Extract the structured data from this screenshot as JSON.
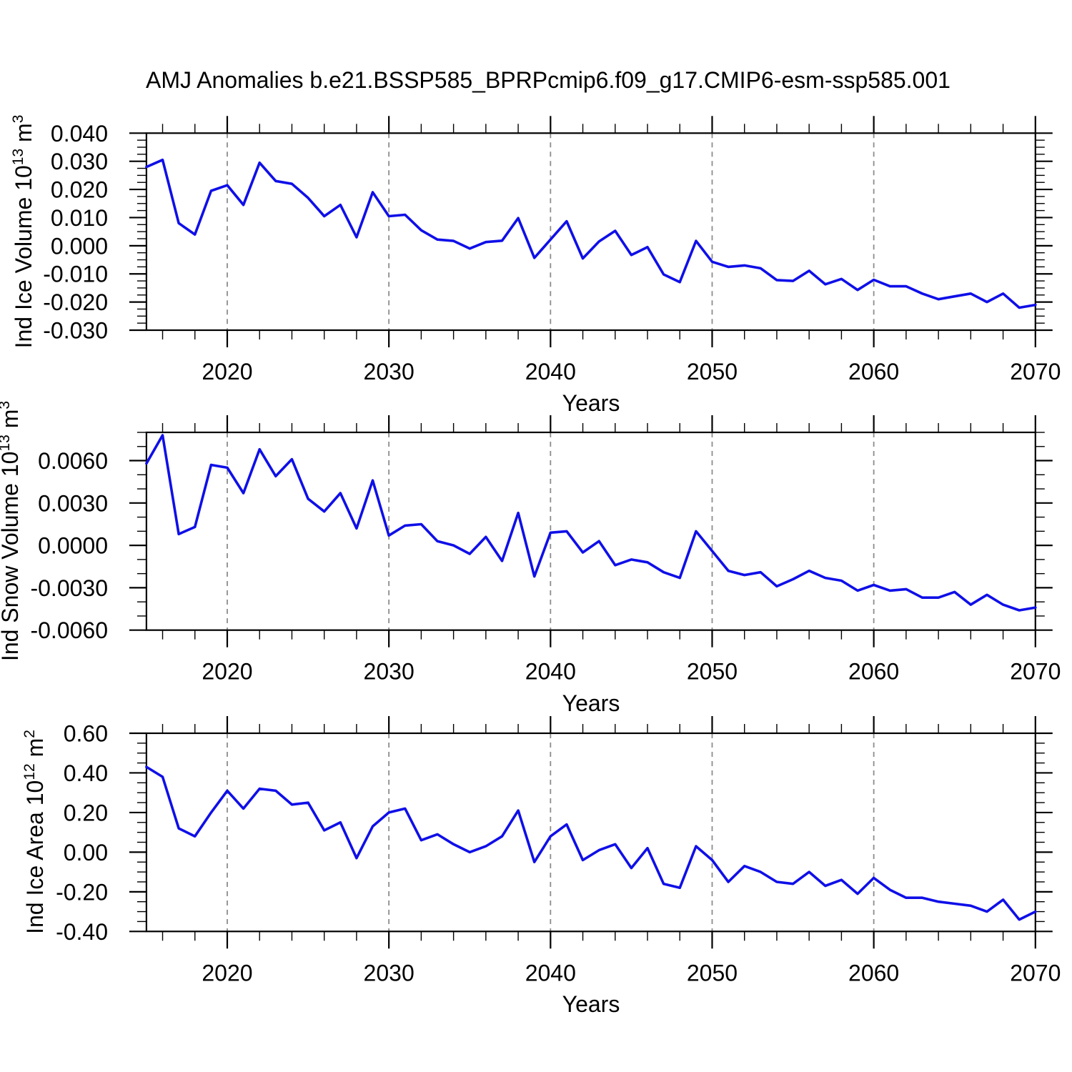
{
  "title": "AMJ Anomalies b.e21.BSSP585_BPRPcmip6.f09_g17.CMIP6-esm-ssp585.001",
  "colors": {
    "line": "#0f0fe8",
    "frame": "#000000",
    "grid": "#8c8c8c",
    "background": "#ffffff"
  },
  "chart_data": [
    {
      "type": "line",
      "id": "ice-volume",
      "ylabel": "Ind Ice Volume 10^13 m^3",
      "ylabel_parts": {
        "pre": "Ind Ice Volume 10",
        "exp": "13",
        "mid": " m",
        "unit_exp": "3"
      },
      "xlabel": "Years",
      "xlim": [
        2015,
        2070
      ],
      "ylim": [
        -0.03,
        0.04
      ],
      "xticks": [
        2020,
        2030,
        2040,
        2050,
        2060,
        2070
      ],
      "xtick_labels": [
        "2020",
        "2030",
        "2040",
        "2050",
        "2060",
        "2070"
      ],
      "x_minor_step": 2,
      "grid_x": [
        2020,
        2030,
        2040,
        2050,
        2060
      ],
      "yticks": [
        0.04,
        0.03,
        0.02,
        0.01,
        0.0,
        -0.01,
        -0.02,
        -0.03
      ],
      "ytick_labels": [
        "0.040",
        "0.030",
        "0.020",
        "0.010",
        "0.000",
        "-0.010",
        "-0.020",
        "-0.030"
      ],
      "y_minor_step": 0.0025,
      "x": [
        2015,
        2016,
        2017,
        2018,
        2019,
        2020,
        2021,
        2022,
        2023,
        2024,
        2025,
        2026,
        2027,
        2028,
        2029,
        2030,
        2031,
        2032,
        2033,
        2034,
        2035,
        2036,
        2037,
        2038,
        2039,
        2040,
        2041,
        2042,
        2043,
        2044,
        2045,
        2046,
        2047,
        2048,
        2049,
        2050,
        2051,
        2052,
        2053,
        2054,
        2055,
        2056,
        2057,
        2058,
        2059,
        2060,
        2061,
        2062,
        2063,
        2064,
        2065,
        2066,
        2067,
        2068,
        2069,
        2070
      ],
      "values": [
        0.028,
        0.0305,
        0.008,
        0.004,
        0.0195,
        0.0215,
        0.0145,
        0.0295,
        0.023,
        0.022,
        0.017,
        0.0105,
        0.0145,
        0.003,
        0.019,
        0.0105,
        0.011,
        0.0055,
        0.0022,
        0.0017,
        -0.001,
        0.0013,
        0.0018,
        0.0098,
        -0.0043,
        0.0022,
        0.0087,
        -0.0045,
        0.0015,
        0.0053,
        -0.0033,
        -0.0005,
        -0.0102,
        -0.0129,
        0.0017,
        -0.0057,
        -0.0075,
        -0.007,
        -0.008,
        -0.0122,
        -0.0125,
        -0.0089,
        -0.0137,
        -0.0118,
        -0.0157,
        -0.0121,
        -0.0144,
        -0.0144,
        -0.017,
        -0.019,
        -0.018,
        -0.017,
        -0.02,
        -0.017,
        -0.022,
        -0.021
      ]
    },
    {
      "type": "line",
      "id": "snow-volume",
      "ylabel": "Ind Snow Volume 10^13 m^3",
      "ylabel_parts": {
        "pre": "Ind Snow Volume 10",
        "exp": "13",
        "mid": " m",
        "unit_exp": "3"
      },
      "xlabel": "Years",
      "xlim": [
        2015,
        2070
      ],
      "ylim": [
        -0.006,
        0.008
      ],
      "xticks": [
        2020,
        2030,
        2040,
        2050,
        2060,
        2070
      ],
      "xtick_labels": [
        "2020",
        "2030",
        "2040",
        "2050",
        "2060",
        "2070"
      ],
      "x_minor_step": 2,
      "grid_x": [
        2020,
        2030,
        2040,
        2050,
        2060
      ],
      "yticks": [
        0.006,
        0.003,
        0.0,
        -0.003,
        -0.006
      ],
      "ytick_labels": [
        "0.0060",
        "0.0030",
        "0.0000",
        "-0.0030",
        "-0.0060"
      ],
      "y_minor_step": 0.001,
      "x": [
        2015,
        2016,
        2017,
        2018,
        2019,
        2020,
        2021,
        2022,
        2023,
        2024,
        2025,
        2026,
        2027,
        2028,
        2029,
        2030,
        2031,
        2032,
        2033,
        2034,
        2035,
        2036,
        2037,
        2038,
        2039,
        2040,
        2041,
        2042,
        2043,
        2044,
        2045,
        2046,
        2047,
        2048,
        2049,
        2050,
        2051,
        2052,
        2053,
        2054,
        2055,
        2056,
        2057,
        2058,
        2059,
        2060,
        2061,
        2062,
        2063,
        2064,
        2065,
        2066,
        2067,
        2068,
        2069,
        2070
      ],
      "values": [
        0.0058,
        0.0078,
        0.0008,
        0.0013,
        0.0057,
        0.0055,
        0.0037,
        0.0068,
        0.0049,
        0.0061,
        0.0033,
        0.0024,
        0.0037,
        0.0012,
        0.0046,
        0.0007,
        0.0014,
        0.0015,
        0.0003,
        0.0,
        -0.0006,
        0.0006,
        -0.0011,
        0.0023,
        -0.0022,
        0.0009,
        0.001,
        -0.0005,
        0.0003,
        -0.0014,
        -0.001,
        -0.0012,
        -0.0019,
        -0.0023,
        0.001,
        -0.0004,
        -0.0018,
        -0.0021,
        -0.0019,
        -0.0029,
        -0.0024,
        -0.0018,
        -0.0023,
        -0.0025,
        -0.0032,
        -0.0028,
        -0.0032,
        -0.0031,
        -0.0037,
        -0.0037,
        -0.0033,
        -0.0042,
        -0.0035,
        -0.0042,
        -0.0046,
        -0.0044
      ]
    },
    {
      "type": "line",
      "id": "ice-area",
      "ylabel": "Ind Ice Area 10^12 m^2",
      "ylabel_parts": {
        "pre": "Ind Ice Area 10",
        "exp": "12",
        "mid": " m",
        "unit_exp": "2"
      },
      "xlabel": "Years",
      "xlim": [
        2015,
        2070
      ],
      "ylim": [
        -0.4,
        0.6
      ],
      "xticks": [
        2020,
        2030,
        2040,
        2050,
        2060,
        2070
      ],
      "xtick_labels": [
        "2020",
        "2030",
        "2040",
        "2050",
        "2060",
        "2070"
      ],
      "x_minor_step": 2,
      "grid_x": [
        2020,
        2030,
        2040,
        2050,
        2060
      ],
      "yticks": [
        0.6,
        0.4,
        0.2,
        0.0,
        -0.2,
        -0.4
      ],
      "ytick_labels": [
        "0.60",
        "0.40",
        "0.20",
        "0.00",
        "-0.20",
        "-0.40"
      ],
      "y_minor_step": 0.05,
      "x": [
        2015,
        2016,
        2017,
        2018,
        2019,
        2020,
        2021,
        2022,
        2023,
        2024,
        2025,
        2026,
        2027,
        2028,
        2029,
        2030,
        2031,
        2032,
        2033,
        2034,
        2035,
        2036,
        2037,
        2038,
        2039,
        2040,
        2041,
        2042,
        2043,
        2044,
        2045,
        2046,
        2047,
        2048,
        2049,
        2050,
        2051,
        2052,
        2053,
        2054,
        2055,
        2056,
        2057,
        2058,
        2059,
        2060,
        2061,
        2062,
        2063,
        2064,
        2065,
        2066,
        2067,
        2068,
        2069,
        2070
      ],
      "values": [
        0.43,
        0.38,
        0.12,
        0.08,
        0.2,
        0.31,
        0.22,
        0.32,
        0.31,
        0.24,
        0.25,
        0.11,
        0.15,
        -0.03,
        0.13,
        0.2,
        0.22,
        0.06,
        0.09,
        0.04,
        0.0,
        0.03,
        0.08,
        0.21,
        -0.05,
        0.08,
        0.14,
        -0.04,
        0.01,
        0.04,
        -0.08,
        0.02,
        -0.16,
        -0.18,
        0.03,
        -0.04,
        -0.15,
        -0.07,
        -0.1,
        -0.15,
        -0.16,
        -0.1,
        -0.17,
        -0.14,
        -0.21,
        -0.13,
        -0.19,
        -0.23,
        -0.23,
        -0.25,
        -0.26,
        -0.27,
        -0.3,
        -0.24,
        -0.34,
        -0.3
      ]
    }
  ]
}
